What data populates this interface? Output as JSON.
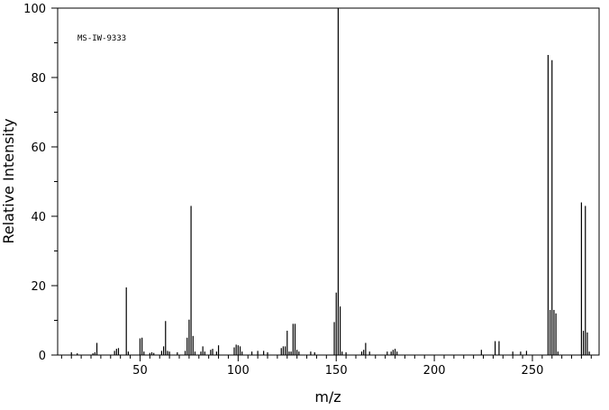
{
  "chart_data": {
    "type": "bar",
    "title": "",
    "annotation": "MS-IW-9333",
    "xlabel": "m/z",
    "ylabel": "Relative Intensity",
    "xlim": [
      8,
      284
    ],
    "ylim": [
      0,
      100
    ],
    "x_ticks": [
      50,
      100,
      150,
      200,
      250
    ],
    "y_ticks": [
      0,
      20,
      40,
      60,
      80,
      100
    ],
    "grid": false,
    "legend": "none",
    "color": "#000000",
    "series": [
      {
        "x": [
          15,
          18,
          26,
          27,
          28,
          37,
          38,
          39,
          43,
          44,
          50,
          51,
          52,
          55,
          56,
          57,
          61,
          62,
          63,
          64,
          65,
          69,
          73,
          74,
          75,
          76,
          77,
          78,
          81,
          82,
          83,
          86,
          87,
          89,
          90,
          98,
          99,
          100,
          101,
          102,
          107,
          110,
          113,
          115,
          122,
          123,
          124,
          125,
          126,
          127,
          128,
          129,
          130,
          131,
          137,
          139,
          149,
          150,
          151,
          152,
          153,
          155,
          163,
          164,
          165,
          167,
          176,
          178,
          179,
          180,
          181,
          224,
          231,
          233,
          240,
          244,
          247,
          258,
          259,
          260,
          261,
          262,
          263,
          275,
          276,
          277,
          278,
          279
        ],
        "y": [
          0.8,
          0.5,
          0.5,
          0.8,
          3.5,
          1.2,
          1.8,
          2.0,
          19.5,
          1.0,
          4.8,
          5.0,
          1.0,
          0.6,
          0.8,
          0.6,
          1.2,
          2.5,
          9.8,
          1.2,
          1.0,
          0.8,
          1.2,
          5.0,
          10.2,
          43.0,
          5.5,
          1.0,
          1.0,
          2.5,
          1.0,
          1.5,
          1.8,
          1.0,
          2.8,
          2.2,
          3.0,
          2.8,
          2.5,
          1.0,
          1.0,
          1.2,
          1.2,
          0.8,
          2.0,
          2.5,
          2.5,
          7.0,
          1.0,
          1.0,
          9.0,
          9.0,
          1.5,
          1.0,
          1.0,
          0.8,
          9.5,
          18.0,
          100.0,
          14.0,
          1.0,
          0.8,
          1.0,
          1.5,
          3.5,
          1.0,
          1.0,
          1.0,
          1.5,
          1.8,
          1.0,
          1.5,
          4.0,
          4.0,
          1.0,
          1.0,
          1.2,
          86.5,
          13.0,
          85.0,
          13.0,
          12.0,
          1.0,
          44.0,
          7.0,
          43.0,
          6.5,
          1.0
        ]
      }
    ]
  }
}
